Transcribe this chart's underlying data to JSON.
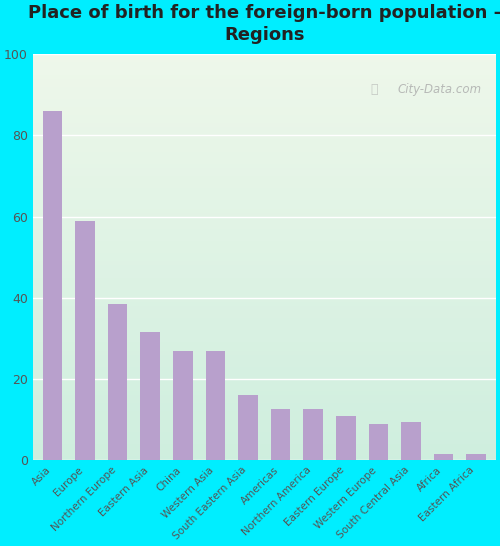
{
  "title": "Place of birth for the foreign-born population -\nRegions",
  "categories": [
    "Asia",
    "Europe",
    "Northern Europe",
    "Eastern Asia",
    "China",
    "Western Asia",
    "South Eastern Asia",
    "Americas",
    "Northern America",
    "Eastern Europe",
    "Western Europe",
    "South Central Asia",
    "Africa",
    "Eastern Africa"
  ],
  "values": [
    86,
    59,
    38.5,
    31.5,
    27,
    27,
    16,
    12.5,
    12.5,
    11,
    9,
    9.5,
    1.5,
    1.5
  ],
  "bar_color": "#b8a0cc",
  "background_outer": "#00eeff",
  "background_inner_top": "#eef7ea",
  "background_inner_bottom": "#ceeede",
  "grid_color": "#ffffff",
  "yticks": [
    0,
    20,
    40,
    60,
    80,
    100
  ],
  "ylim": [
    0,
    100
  ],
  "title_fontsize": 13,
  "tick_label_fontsize": 7.5,
  "ytick_fontsize": 9,
  "watermark_text": "City-Data.com",
  "title_color": "#222222"
}
